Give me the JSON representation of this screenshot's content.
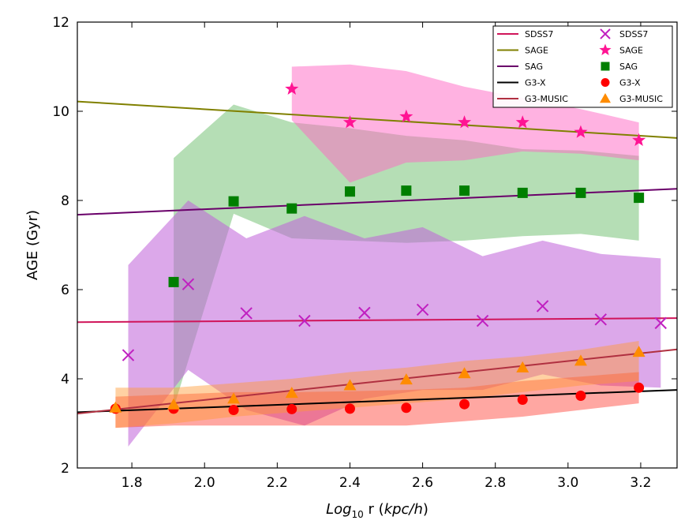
{
  "chart_data": {
    "type": "line",
    "xlabel_prefix": "Log",
    "xlabel_sub": "10",
    "xlabel_suffix": " r (",
    "xlabel_unit": "kpc/h",
    "xlabel_close": ")",
    "ylabel": "AGE (Gyr)",
    "xlim": [
      1.65,
      3.3
    ],
    "ylim": [
      2,
      12
    ],
    "xticks": [
      1.8,
      2.0,
      2.2,
      2.4,
      2.6,
      2.8,
      3.0,
      3.2
    ],
    "xtick_labels": [
      "1.8",
      "2.0",
      "2.2",
      "2.4",
      "2.6",
      "2.8",
      "3.0",
      "3.2"
    ],
    "yticks": [
      2,
      4,
      6,
      8,
      10,
      12
    ],
    "ytick_labels": [
      "2",
      "4",
      "6",
      "8",
      "10",
      "12"
    ],
    "legend_placement": "top-right",
    "legend_lines": [
      {
        "name": "SDSS7",
        "color": "#d0155a"
      },
      {
        "name": "SAGE",
        "color": "#808000"
      },
      {
        "name": "SAG",
        "color": "#6a006a"
      },
      {
        "name": "G3-X",
        "color": "#000000"
      },
      {
        "name": "G3-MUSIC",
        "color": "#b03040"
      }
    ],
    "legend_markers": [
      {
        "name": "SDSS7",
        "color": "#c020c0",
        "marker": "x"
      },
      {
        "name": "SAGE",
        "color": "#ff1493",
        "marker": "star"
      },
      {
        "name": "SAG",
        "color": "#007f00",
        "marker": "square"
      },
      {
        "name": "G3-X",
        "color": "#ff0000",
        "marker": "circle"
      },
      {
        "name": "G3-MUSIC",
        "color": "#ff8c00",
        "marker": "triangle"
      }
    ],
    "fits": [
      {
        "name": "SDSS7",
        "color": "#d0155a",
        "x": [
          1.65,
          3.3
        ],
        "y": [
          5.27,
          5.36
        ]
      },
      {
        "name": "SAGE",
        "color": "#808000",
        "x": [
          1.65,
          3.3
        ],
        "y": [
          10.22,
          9.4
        ]
      },
      {
        "name": "SAG",
        "color": "#6a006a",
        "x": [
          1.65,
          3.3
        ],
        "y": [
          7.68,
          8.26
        ]
      },
      {
        "name": "G3-X",
        "color": "#000000",
        "x": [
          1.65,
          3.3
        ],
        "y": [
          3.25,
          3.75
        ]
      },
      {
        "name": "G3-MUSIC",
        "color": "#b03040",
        "x": [
          1.65,
          3.3
        ],
        "y": [
          3.22,
          4.66
        ]
      }
    ],
    "bands": [
      {
        "name": "SAG",
        "fill": "#2ca02c",
        "opacity": 0.35,
        "x": [
          1.915,
          2.08,
          2.24,
          2.4,
          2.555,
          2.715,
          2.875,
          3.035,
          3.195
        ],
        "upper": [
          8.95,
          10.15,
          9.75,
          9.62,
          9.45,
          9.35,
          9.15,
          9.12,
          9.0
        ],
        "lower": [
          3.35,
          7.7,
          7.15,
          7.1,
          7.05,
          7.1,
          7.2,
          7.25,
          7.1
        ]
      },
      {
        "name": "SDSS7",
        "fill": "#c060d8",
        "opacity": 0.55,
        "x": [
          1.79,
          1.955,
          2.115,
          2.275,
          2.44,
          2.6,
          2.765,
          2.93,
          3.09,
          3.255
        ],
        "upper": [
          6.55,
          8.0,
          7.15,
          7.65,
          7.15,
          7.4,
          6.75,
          7.1,
          6.8,
          6.7
        ],
        "lower": [
          2.48,
          4.2,
          3.3,
          2.95,
          3.55,
          3.75,
          3.75,
          4.1,
          3.85,
          3.8
        ]
      },
      {
        "name": "SAGE",
        "fill": "#ff66c4",
        "opacity": 0.5,
        "x": [
          2.24,
          2.4,
          2.555,
          2.715,
          2.875,
          3.035,
          3.195
        ],
        "upper": [
          11.0,
          11.05,
          10.9,
          10.55,
          10.3,
          10.05,
          9.75
        ],
        "lower": [
          9.8,
          8.4,
          8.85,
          8.9,
          9.1,
          9.05,
          8.9
        ]
      },
      {
        "name": "G3-X",
        "fill": "#ff3b30",
        "opacity": 0.45,
        "x": [
          1.755,
          1.915,
          2.08,
          2.24,
          2.4,
          2.555,
          2.715,
          2.875,
          3.035,
          3.195
        ],
        "upper": [
          3.6,
          3.65,
          3.7,
          3.7,
          3.72,
          3.75,
          3.8,
          3.95,
          4.05,
          4.15
        ],
        "lower": [
          2.9,
          2.95,
          2.95,
          2.95,
          2.95,
          2.95,
          3.05,
          3.15,
          3.3,
          3.45
        ]
      },
      {
        "name": "G3-MUSIC",
        "fill": "#ff9a33",
        "opacity": 0.45,
        "x": [
          1.755,
          1.915,
          2.08,
          2.24,
          2.4,
          2.555,
          2.715,
          2.875,
          3.035,
          3.195
        ],
        "upper": [
          3.8,
          3.8,
          3.9,
          4.0,
          4.15,
          4.25,
          4.4,
          4.5,
          4.65,
          4.85
        ],
        "lower": [
          2.9,
          3.0,
          3.15,
          3.25,
          3.35,
          3.45,
          3.55,
          3.7,
          3.85,
          3.95
        ]
      }
    ],
    "series": [
      {
        "name": "SDSS7",
        "marker": "x",
        "color": "#c020c0",
        "x": [
          1.79,
          1.955,
          2.115,
          2.275,
          2.44,
          2.6,
          2.765,
          2.93,
          3.09,
          3.255
        ],
        "y": [
          4.53,
          6.12,
          5.47,
          5.3,
          5.48,
          5.55,
          5.3,
          5.63,
          5.33,
          5.25
        ]
      },
      {
        "name": "SAGE",
        "marker": "star",
        "color": "#ff1493",
        "x": [
          2.24,
          2.4,
          2.555,
          2.715,
          2.875,
          3.035,
          3.195
        ],
        "y": [
          10.5,
          9.75,
          9.88,
          9.75,
          9.75,
          9.53,
          9.35
        ]
      },
      {
        "name": "SAG",
        "marker": "square",
        "color": "#007f00",
        "x": [
          1.915,
          2.08,
          2.24,
          2.4,
          2.555,
          2.715,
          2.875,
          3.035,
          3.195
        ],
        "y": [
          6.17,
          7.98,
          7.82,
          8.2,
          8.22,
          8.22,
          8.17,
          8.17,
          8.06
        ]
      },
      {
        "name": "G3-X",
        "marker": "circle",
        "color": "#ff0000",
        "x": [
          1.755,
          1.915,
          2.08,
          2.24,
          2.4,
          2.555,
          2.715,
          2.875,
          3.035,
          3.195
        ],
        "y": [
          3.33,
          3.33,
          3.3,
          3.32,
          3.33,
          3.35,
          3.43,
          3.53,
          3.62,
          3.8
        ]
      },
      {
        "name": "G3-MUSIC",
        "marker": "triangle",
        "color": "#ff8c00",
        "x": [
          1.755,
          1.915,
          2.08,
          2.24,
          2.4,
          2.555,
          2.715,
          2.875,
          3.035,
          3.195
        ],
        "y": [
          3.35,
          3.42,
          3.55,
          3.68,
          3.85,
          3.98,
          4.12,
          4.25,
          4.4,
          4.6
        ]
      }
    ]
  }
}
